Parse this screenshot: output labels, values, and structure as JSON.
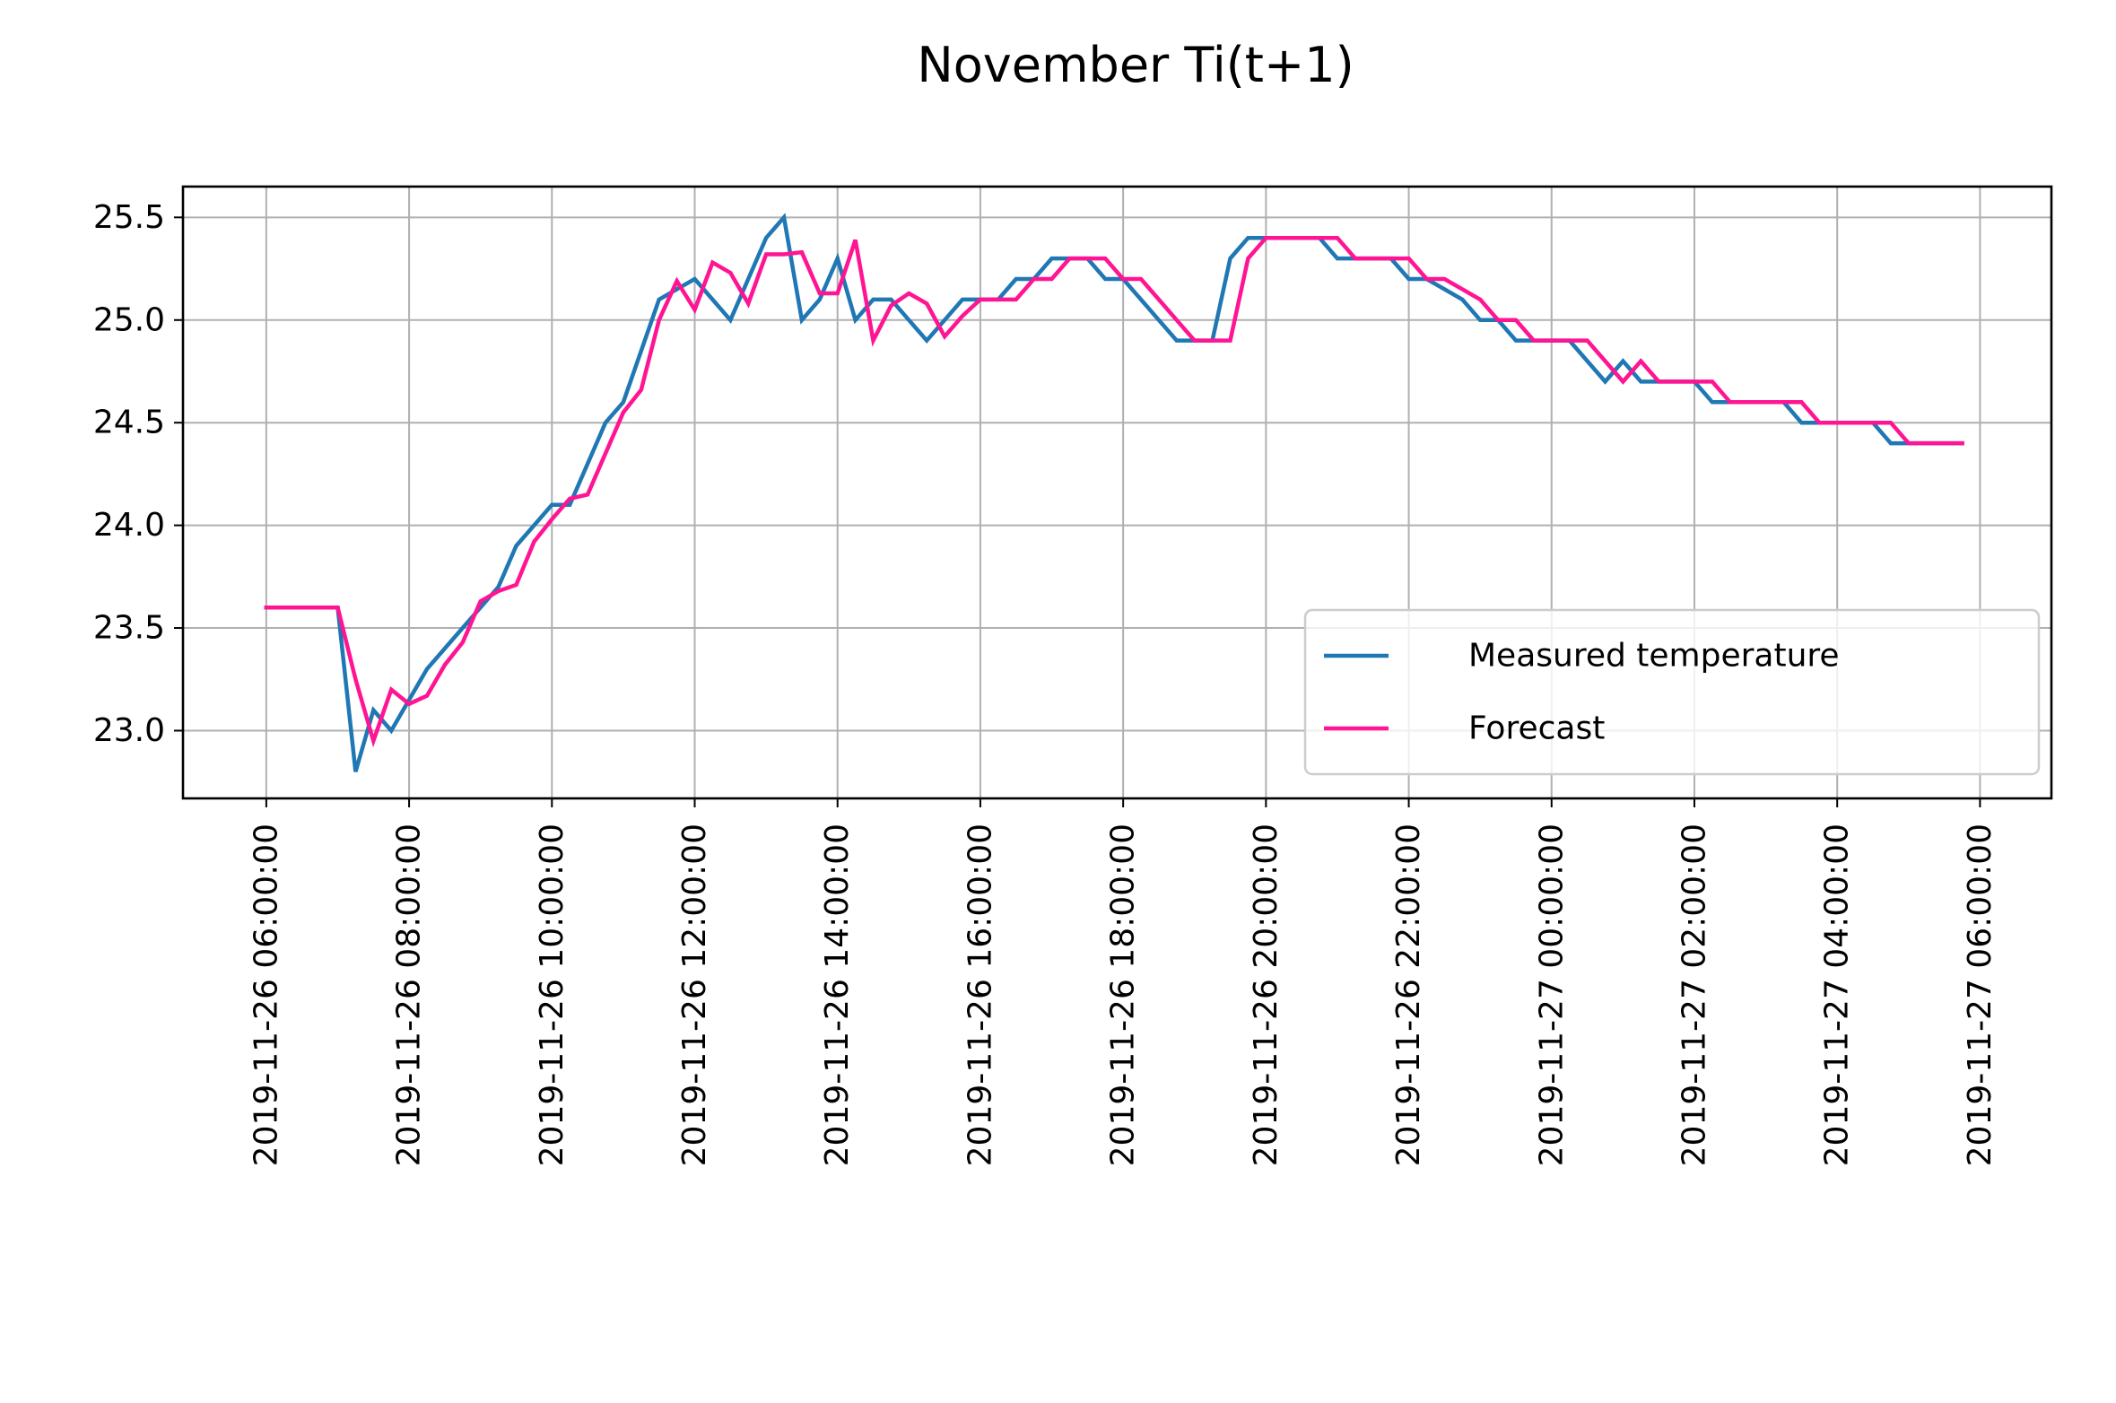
{
  "chart_data": {
    "type": "line",
    "title": "November Ti(t+1)",
    "xlabel": "",
    "ylabel": "",
    "x_ticks": [
      "2019-11-26 06:00:00",
      "2019-11-26 08:00:00",
      "2019-11-26 10:00:00",
      "2019-11-26 12:00:00",
      "2019-11-26 14:00:00",
      "2019-11-26 16:00:00",
      "2019-11-26 18:00:00",
      "2019-11-26 20:00:00",
      "2019-11-26 22:00:00",
      "2019-11-27 00:00:00",
      "2019-11-27 02:00:00",
      "2019-11-27 04:00:00",
      "2019-11-27 06:00:00"
    ],
    "y_ticks": [
      "23.0",
      "23.5",
      "24.0",
      "24.5",
      "25.0",
      "25.5"
    ],
    "xlim": [
      "2019-11-26 04:50:00",
      "2019-11-27 07:00:00"
    ],
    "ylim": [
      22.67,
      25.65
    ],
    "grid": true,
    "legend_position": "lower right",
    "series": [
      {
        "name": "Measured temperature",
        "color": "#1f77b4",
        "points": [
          [
            "2019-11-26 06:00:00",
            23.6
          ],
          [
            "2019-11-26 06:15:00",
            23.6
          ],
          [
            "2019-11-26 06:30:00",
            23.6
          ],
          [
            "2019-11-26 06:45:00",
            23.6
          ],
          [
            "2019-11-26 07:00:00",
            23.6
          ],
          [
            "2019-11-26 07:15:00",
            22.8
          ],
          [
            "2019-11-26 07:30:00",
            23.1
          ],
          [
            "2019-11-26 07:45:00",
            23.0
          ],
          [
            "2019-11-26 08:00:00",
            23.15
          ],
          [
            "2019-11-26 08:15:00",
            23.3
          ],
          [
            "2019-11-26 08:30:00",
            23.4
          ],
          [
            "2019-11-26 08:45:00",
            23.5
          ],
          [
            "2019-11-26 09:00:00",
            23.6
          ],
          [
            "2019-11-26 09:15:00",
            23.7
          ],
          [
            "2019-11-26 09:30:00",
            23.9
          ],
          [
            "2019-11-26 09:45:00",
            24.0
          ],
          [
            "2019-11-26 10:00:00",
            24.1
          ],
          [
            "2019-11-26 10:15:00",
            24.1
          ],
          [
            "2019-11-26 10:30:00",
            24.3
          ],
          [
            "2019-11-26 10:45:00",
            24.5
          ],
          [
            "2019-11-26 11:00:00",
            24.6
          ],
          [
            "2019-11-26 11:15:00",
            24.85
          ],
          [
            "2019-11-26 11:30:00",
            25.1
          ],
          [
            "2019-11-26 11:45:00",
            25.15
          ],
          [
            "2019-11-26 12:00:00",
            25.2
          ],
          [
            "2019-11-26 12:15:00",
            25.1
          ],
          [
            "2019-11-26 12:30:00",
            25.0
          ],
          [
            "2019-11-26 12:45:00",
            25.2
          ],
          [
            "2019-11-26 13:00:00",
            25.4
          ],
          [
            "2019-11-26 13:15:00",
            25.5
          ],
          [
            "2019-11-26 13:30:00",
            25.0
          ],
          [
            "2019-11-26 13:45:00",
            25.1
          ],
          [
            "2019-11-26 14:00:00",
            25.3
          ],
          [
            "2019-11-26 14:15:00",
            25.0
          ],
          [
            "2019-11-26 14:30:00",
            25.1
          ],
          [
            "2019-11-26 14:45:00",
            25.1
          ],
          [
            "2019-11-26 15:00:00",
            25.0
          ],
          [
            "2019-11-26 15:15:00",
            24.9
          ],
          [
            "2019-11-26 15:30:00",
            25.0
          ],
          [
            "2019-11-26 15:45:00",
            25.1
          ],
          [
            "2019-11-26 16:00:00",
            25.1
          ],
          [
            "2019-11-26 16:15:00",
            25.1
          ],
          [
            "2019-11-26 16:30:00",
            25.2
          ],
          [
            "2019-11-26 16:45:00",
            25.2
          ],
          [
            "2019-11-26 17:00:00",
            25.3
          ],
          [
            "2019-11-26 17:15:00",
            25.3
          ],
          [
            "2019-11-26 17:30:00",
            25.3
          ],
          [
            "2019-11-26 17:45:00",
            25.2
          ],
          [
            "2019-11-26 18:00:00",
            25.2
          ],
          [
            "2019-11-26 18:15:00",
            25.1
          ],
          [
            "2019-11-26 18:30:00",
            25.0
          ],
          [
            "2019-11-26 18:45:00",
            24.9
          ],
          [
            "2019-11-26 19:00:00",
            24.9
          ],
          [
            "2019-11-26 19:15:00",
            24.9
          ],
          [
            "2019-11-26 19:30:00",
            25.3
          ],
          [
            "2019-11-26 19:45:00",
            25.4
          ],
          [
            "2019-11-26 20:00:00",
            25.4
          ],
          [
            "2019-11-26 20:15:00",
            25.4
          ],
          [
            "2019-11-26 20:30:00",
            25.4
          ],
          [
            "2019-11-26 20:45:00",
            25.4
          ],
          [
            "2019-11-26 21:00:00",
            25.3
          ],
          [
            "2019-11-26 21:15:00",
            25.3
          ],
          [
            "2019-11-26 21:30:00",
            25.3
          ],
          [
            "2019-11-26 21:45:00",
            25.3
          ],
          [
            "2019-11-26 22:00:00",
            25.2
          ],
          [
            "2019-11-26 22:15:00",
            25.2
          ],
          [
            "2019-11-26 22:30:00",
            25.15
          ],
          [
            "2019-11-26 22:45:00",
            25.1
          ],
          [
            "2019-11-26 23:00:00",
            25.0
          ],
          [
            "2019-11-26 23:15:00",
            25.0
          ],
          [
            "2019-11-26 23:30:00",
            24.9
          ],
          [
            "2019-11-26 23:45:00",
            24.9
          ],
          [
            "2019-11-27 00:00:00",
            24.9
          ],
          [
            "2019-11-27 00:15:00",
            24.9
          ],
          [
            "2019-11-27 00:30:00",
            24.8
          ],
          [
            "2019-11-27 00:45:00",
            24.7
          ],
          [
            "2019-11-27 01:00:00",
            24.8
          ],
          [
            "2019-11-27 01:15:00",
            24.7
          ],
          [
            "2019-11-27 01:30:00",
            24.7
          ],
          [
            "2019-11-27 01:45:00",
            24.7
          ],
          [
            "2019-11-27 02:00:00",
            24.7
          ],
          [
            "2019-11-27 02:15:00",
            24.6
          ],
          [
            "2019-11-27 02:30:00",
            24.6
          ],
          [
            "2019-11-27 02:45:00",
            24.6
          ],
          [
            "2019-11-27 03:00:00",
            24.6
          ],
          [
            "2019-11-27 03:15:00",
            24.6
          ],
          [
            "2019-11-27 03:30:00",
            24.5
          ],
          [
            "2019-11-27 03:45:00",
            24.5
          ],
          [
            "2019-11-27 04:00:00",
            24.5
          ],
          [
            "2019-11-27 04:15:00",
            24.5
          ],
          [
            "2019-11-27 04:30:00",
            24.5
          ],
          [
            "2019-11-27 04:45:00",
            24.4
          ],
          [
            "2019-11-27 05:00:00",
            24.4
          ],
          [
            "2019-11-27 05:15:00",
            24.4
          ],
          [
            "2019-11-27 05:30:00",
            24.4
          ],
          [
            "2019-11-27 05:45:00",
            24.4
          ]
        ]
      },
      {
        "name": "Forecast",
        "color": "#ff1493",
        "points": [
          [
            "2019-11-26 06:00:00",
            23.6
          ],
          [
            "2019-11-26 06:15:00",
            23.6
          ],
          [
            "2019-11-26 06:30:00",
            23.6
          ],
          [
            "2019-11-26 06:45:00",
            23.6
          ],
          [
            "2019-11-26 07:00:00",
            23.6
          ],
          [
            "2019-11-26 07:15:00",
            23.25
          ],
          [
            "2019-11-26 07:30:00",
            22.95
          ],
          [
            "2019-11-26 07:45:00",
            23.2
          ],
          [
            "2019-11-26 08:00:00",
            23.13
          ],
          [
            "2019-11-26 08:15:00",
            23.17
          ],
          [
            "2019-11-26 08:30:00",
            23.32
          ],
          [
            "2019-11-26 08:45:00",
            23.43
          ],
          [
            "2019-11-26 09:00:00",
            23.63
          ],
          [
            "2019-11-26 09:15:00",
            23.68
          ],
          [
            "2019-11-26 09:30:00",
            23.71
          ],
          [
            "2019-11-26 09:45:00",
            23.92
          ],
          [
            "2019-11-26 10:00:00",
            24.03
          ],
          [
            "2019-11-26 10:15:00",
            24.13
          ],
          [
            "2019-11-26 10:30:00",
            24.15
          ],
          [
            "2019-11-26 10:45:00",
            24.35
          ],
          [
            "2019-11-26 11:00:00",
            24.55
          ],
          [
            "2019-11-26 11:15:00",
            24.66
          ],
          [
            "2019-11-26 11:30:00",
            25.0
          ],
          [
            "2019-11-26 11:45:00",
            25.19
          ],
          [
            "2019-11-26 12:00:00",
            25.05
          ],
          [
            "2019-11-26 12:15:00",
            25.28
          ],
          [
            "2019-11-26 12:30:00",
            25.23
          ],
          [
            "2019-11-26 12:45:00",
            25.08
          ],
          [
            "2019-11-26 13:00:00",
            25.32
          ],
          [
            "2019-11-26 13:15:00",
            25.32
          ],
          [
            "2019-11-26 13:30:00",
            25.33
          ],
          [
            "2019-11-26 13:45:00",
            25.13
          ],
          [
            "2019-11-26 14:00:00",
            25.13
          ],
          [
            "2019-11-26 14:15:00",
            25.39
          ],
          [
            "2019-11-26 14:30:00",
            24.9
          ],
          [
            "2019-11-26 14:45:00",
            25.07
          ],
          [
            "2019-11-26 15:00:00",
            25.13
          ],
          [
            "2019-11-26 15:15:00",
            25.08
          ],
          [
            "2019-11-26 15:30:00",
            24.92
          ],
          [
            "2019-11-26 15:45:00",
            25.02
          ],
          [
            "2019-11-26 16:00:00",
            25.1
          ],
          [
            "2019-11-26 16:15:00",
            25.1
          ],
          [
            "2019-11-26 16:30:00",
            25.1
          ],
          [
            "2019-11-26 16:45:00",
            25.2
          ],
          [
            "2019-11-26 17:00:00",
            25.2
          ],
          [
            "2019-11-26 17:15:00",
            25.3
          ],
          [
            "2019-11-26 17:30:00",
            25.3
          ],
          [
            "2019-11-26 17:45:00",
            25.3
          ],
          [
            "2019-11-26 18:00:00",
            25.2
          ],
          [
            "2019-11-26 18:15:00",
            25.2
          ],
          [
            "2019-11-26 18:30:00",
            25.1
          ],
          [
            "2019-11-26 18:45:00",
            25.0
          ],
          [
            "2019-11-26 19:00:00",
            24.9
          ],
          [
            "2019-11-26 19:15:00",
            24.9
          ],
          [
            "2019-11-26 19:30:00",
            24.9
          ],
          [
            "2019-11-26 19:45:00",
            25.3
          ],
          [
            "2019-11-26 20:00:00",
            25.4
          ],
          [
            "2019-11-26 20:15:00",
            25.4
          ],
          [
            "2019-11-26 20:30:00",
            25.4
          ],
          [
            "2019-11-26 20:45:00",
            25.4
          ],
          [
            "2019-11-26 21:00:00",
            25.4
          ],
          [
            "2019-11-26 21:15:00",
            25.3
          ],
          [
            "2019-11-26 21:30:00",
            25.3
          ],
          [
            "2019-11-26 21:45:00",
            25.3
          ],
          [
            "2019-11-26 22:00:00",
            25.3
          ],
          [
            "2019-11-26 22:15:00",
            25.2
          ],
          [
            "2019-11-26 22:30:00",
            25.2
          ],
          [
            "2019-11-26 22:45:00",
            25.15
          ],
          [
            "2019-11-26 23:00:00",
            25.1
          ],
          [
            "2019-11-26 23:15:00",
            25.0
          ],
          [
            "2019-11-26 23:30:00",
            25.0
          ],
          [
            "2019-11-26 23:45:00",
            24.9
          ],
          [
            "2019-11-27 00:00:00",
            24.9
          ],
          [
            "2019-11-27 00:15:00",
            24.9
          ],
          [
            "2019-11-27 00:30:00",
            24.9
          ],
          [
            "2019-11-27 00:45:00",
            24.8
          ],
          [
            "2019-11-27 01:00:00",
            24.7
          ],
          [
            "2019-11-27 01:15:00",
            24.8
          ],
          [
            "2019-11-27 01:30:00",
            24.7
          ],
          [
            "2019-11-27 01:45:00",
            24.7
          ],
          [
            "2019-11-27 02:00:00",
            24.7
          ],
          [
            "2019-11-27 02:15:00",
            24.7
          ],
          [
            "2019-11-27 02:30:00",
            24.6
          ],
          [
            "2019-11-27 02:45:00",
            24.6
          ],
          [
            "2019-11-27 03:00:00",
            24.6
          ],
          [
            "2019-11-27 03:15:00",
            24.6
          ],
          [
            "2019-11-27 03:30:00",
            24.6
          ],
          [
            "2019-11-27 03:45:00",
            24.5
          ],
          [
            "2019-11-27 04:00:00",
            24.5
          ],
          [
            "2019-11-27 04:15:00",
            24.5
          ],
          [
            "2019-11-27 04:30:00",
            24.5
          ],
          [
            "2019-11-27 04:45:00",
            24.5
          ],
          [
            "2019-11-27 05:00:00",
            24.4
          ],
          [
            "2019-11-27 05:15:00",
            24.4
          ],
          [
            "2019-11-27 05:30:00",
            24.4
          ],
          [
            "2019-11-27 05:45:00",
            24.4
          ]
        ]
      }
    ]
  }
}
